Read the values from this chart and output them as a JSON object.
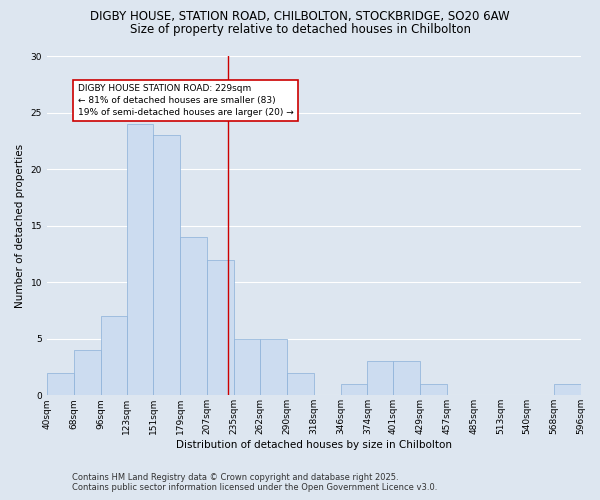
{
  "title_line1": "DIGBY HOUSE, STATION ROAD, CHILBOLTON, STOCKBRIDGE, SO20 6AW",
  "title_line2": "Size of property relative to detached houses in Chilbolton",
  "xlabel": "Distribution of detached houses by size in Chilbolton",
  "ylabel": "Number of detached properties",
  "bar_color": "#ccdcf0",
  "bar_edgecolor": "#8ab0d8",
  "background_color": "#dde6f0",
  "plot_bg_color": "#dde6f0",
  "grid_color": "#ffffff",
  "bins": [
    40,
    68,
    96,
    123,
    151,
    179,
    207,
    235,
    262,
    290,
    318,
    346,
    374,
    401,
    429,
    457,
    485,
    513,
    540,
    568,
    596
  ],
  "bin_labels": [
    "40sqm",
    "68sqm",
    "96sqm",
    "123sqm",
    "151sqm",
    "179sqm",
    "207sqm",
    "235sqm",
    "262sqm",
    "290sqm",
    "318sqm",
    "346sqm",
    "374sqm",
    "401sqm",
    "429sqm",
    "457sqm",
    "485sqm",
    "513sqm",
    "540sqm",
    "568sqm",
    "596sqm"
  ],
  "heights": [
    2,
    4,
    7,
    24,
    23,
    14,
    12,
    5,
    5,
    2,
    0,
    1,
    3,
    3,
    1,
    0,
    0,
    0,
    0,
    1
  ],
  "vline_x": 229,
  "vline_color": "#cc0000",
  "annotation_text": "DIGBY HOUSE STATION ROAD: 229sqm\n← 81% of detached houses are smaller (83)\n19% of semi-detached houses are larger (20) →",
  "annotation_box_facecolor": "#ffffff",
  "annotation_box_edgecolor": "#cc0000",
  "ylim": [
    0,
    30
  ],
  "yticks": [
    0,
    5,
    10,
    15,
    20,
    25,
    30
  ],
  "footer_line1": "Contains HM Land Registry data © Crown copyright and database right 2025.",
  "footer_line2": "Contains public sector information licensed under the Open Government Licence v3.0.",
  "title_fontsize": 8.5,
  "axis_label_fontsize": 7.5,
  "tick_fontsize": 6.5,
  "annotation_fontsize": 6.5,
  "footer_fontsize": 6.0,
  "ylabel_fontsize": 7.5
}
